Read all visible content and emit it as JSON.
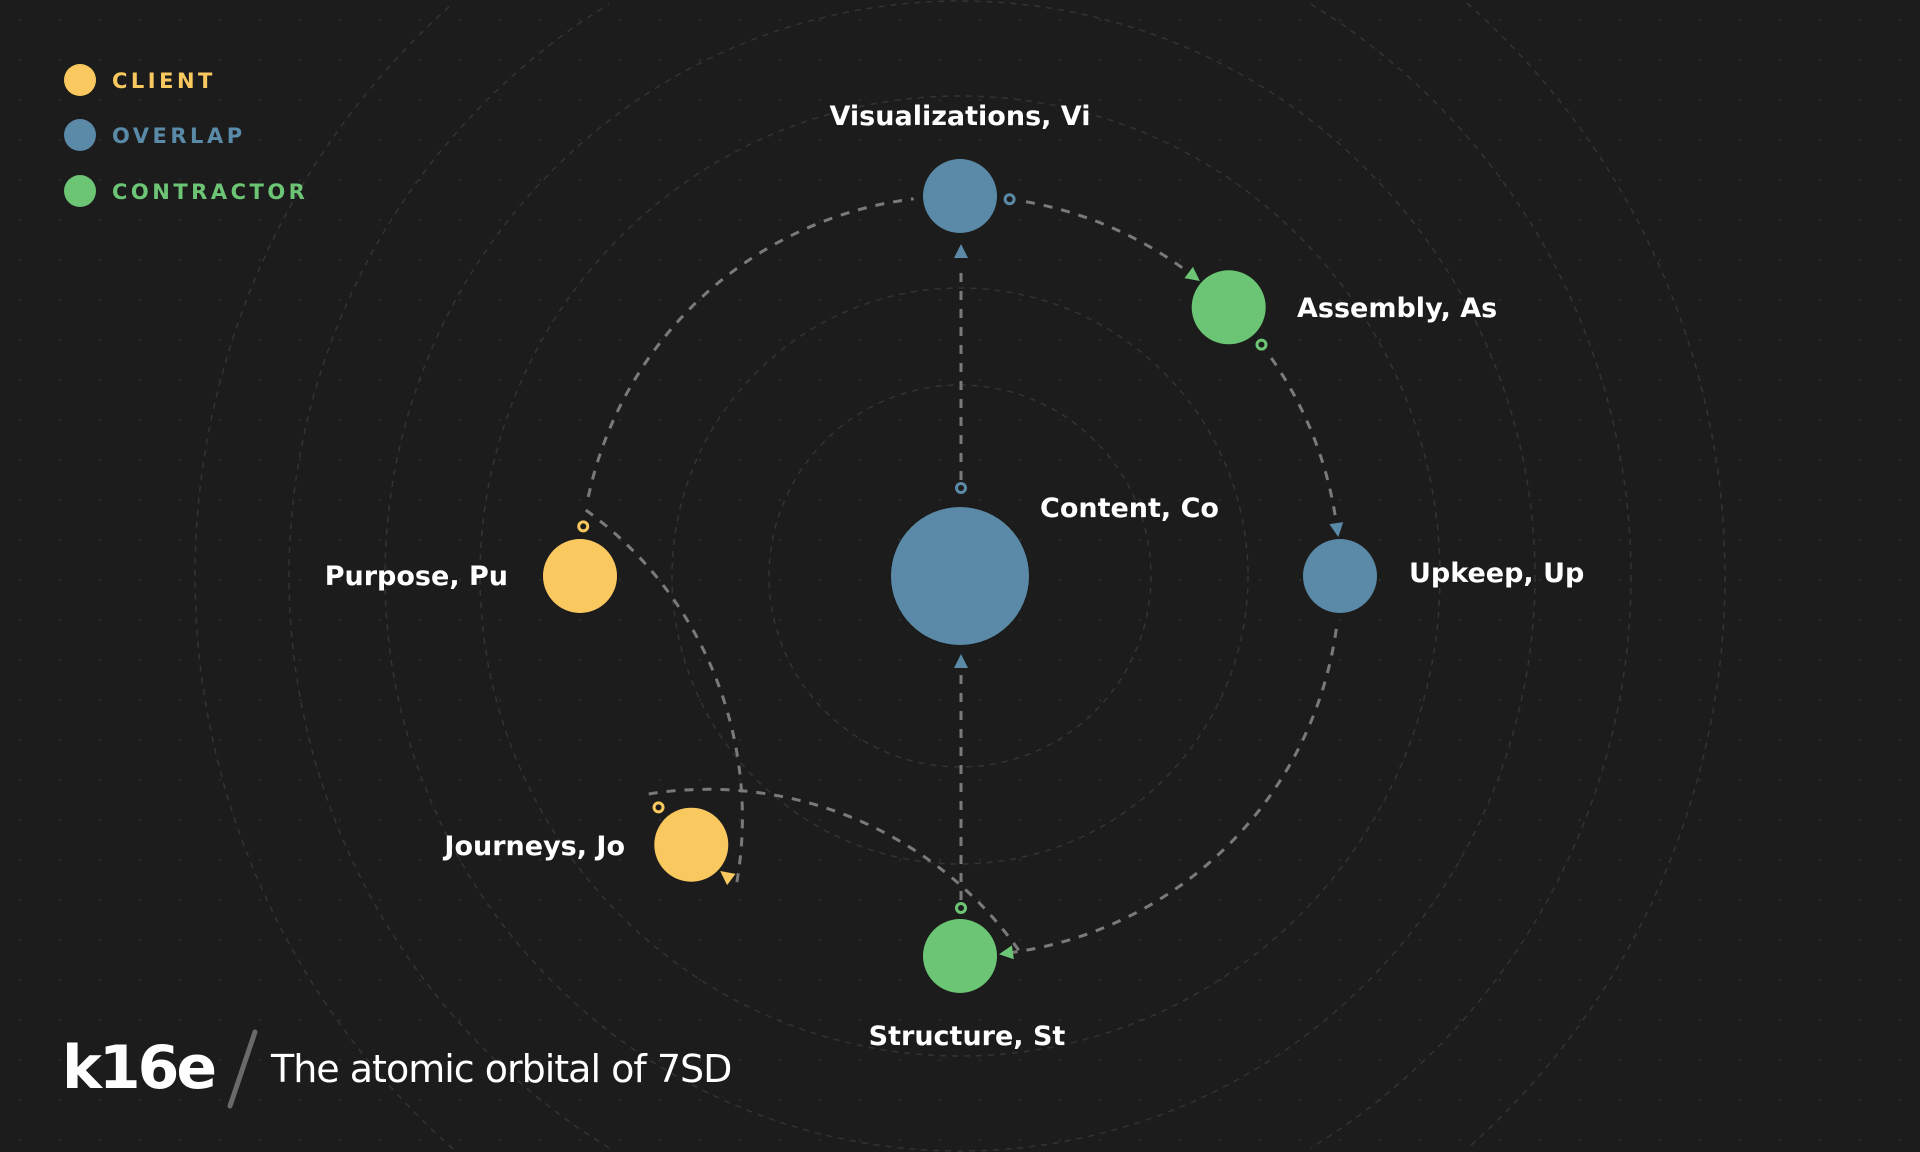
{
  "colors": {
    "client": "#f9c95f",
    "overlap": "#5a8aa8",
    "contractor": "#6cc574",
    "background": "#1c1c1c"
  },
  "legend": [
    {
      "label": "CLIENT",
      "category": "client"
    },
    {
      "label": "OVERLAP",
      "category": "overlap"
    },
    {
      "label": "CONTRACTOR",
      "category": "contractor"
    }
  ],
  "nodes": {
    "content": {
      "label": "Content, Co",
      "category": "overlap"
    },
    "visualizations": {
      "label": "Visualizations, Vi",
      "category": "overlap"
    },
    "assembly": {
      "label": "Assembly, As",
      "category": "contractor"
    },
    "upkeep": {
      "label": "Upkeep, Up",
      "category": "overlap"
    },
    "structure": {
      "label": "Structure, St",
      "category": "contractor"
    },
    "journeys": {
      "label": "Journeys, Jo",
      "category": "client"
    },
    "purpose": {
      "label": "Purpose, Pu",
      "category": "client"
    }
  },
  "links": [
    {
      "from": "visualizations",
      "to": "assembly"
    },
    {
      "from": "assembly",
      "to": "upkeep"
    },
    {
      "from": "purpose",
      "to": "journeys"
    },
    {
      "from": "journeys",
      "to": "structure"
    },
    {
      "from": "content",
      "to": "visualizations"
    },
    {
      "from": "structure",
      "to": "content"
    }
  ],
  "footer": {
    "logo": "k16e",
    "tagline": "The atomic orbital of 7SD"
  }
}
